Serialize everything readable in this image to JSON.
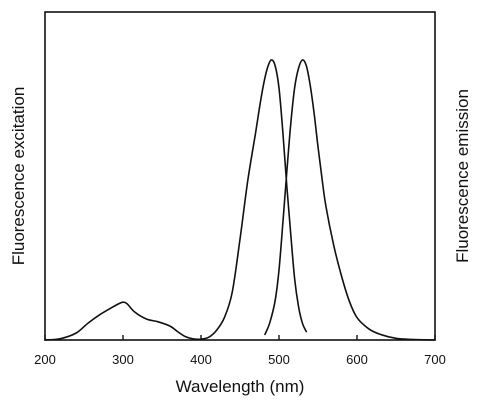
{
  "chart_data": {
    "type": "line",
    "title": "",
    "xlabel": "Wavelength (nm)",
    "ylabel_left": "Fluorescence excitation",
    "ylabel_right": "Fluorescence emission",
    "xlim": [
      200,
      700
    ],
    "ylim": [
      0,
      1.0
    ],
    "x_ticks": [
      200,
      300,
      400,
      500,
      600,
      700
    ],
    "y_ticks_shown": false,
    "grid": false,
    "legend": "none",
    "series": [
      {
        "x": [
          200,
          220,
          240,
          255,
          270,
          285,
          295,
          300,
          305,
          315,
          330,
          345,
          360,
          370,
          380,
          390,
          400,
          410,
          420,
          430,
          440,
          450,
          460,
          470,
          475,
          480,
          485,
          490,
          495,
          500,
          505,
          510,
          515,
          520,
          525,
          530,
          535
        ],
        "y": [
          0.0,
          0.005,
          0.025,
          0.06,
          0.09,
          0.115,
          0.13,
          0.135,
          0.13,
          0.1,
          0.075,
          0.065,
          0.05,
          0.03,
          0.012,
          0.004,
          0.003,
          0.01,
          0.035,
          0.08,
          0.17,
          0.36,
          0.57,
          0.74,
          0.83,
          0.91,
          0.97,
          1.0,
          0.98,
          0.9,
          0.74,
          0.55,
          0.38,
          0.22,
          0.12,
          0.06,
          0.03
        ]
      },
      {
        "x": [
          482,
          488,
          495,
          500,
          505,
          510,
          515,
          520,
          525,
          530,
          535,
          540,
          545,
          550,
          555,
          560,
          570,
          580,
          590,
          600,
          615,
          630,
          650,
          670,
          700
        ],
        "y": [
          0.02,
          0.06,
          0.14,
          0.25,
          0.42,
          0.6,
          0.77,
          0.9,
          0.97,
          1.0,
          0.98,
          0.91,
          0.81,
          0.69,
          0.58,
          0.48,
          0.34,
          0.23,
          0.14,
          0.08,
          0.04,
          0.02,
          0.006,
          0.002,
          0.0
        ]
      }
    ]
  }
}
